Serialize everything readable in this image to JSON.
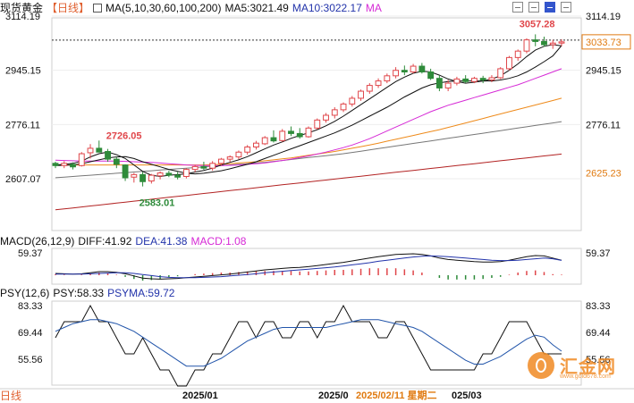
{
  "header": {
    "title": "现货黄金",
    "period": "【日线】",
    "ma_label": "MA(5,10,30,60,100,200)",
    "ma5": "MA5:3021.49",
    "ma10": "MA10:3022.17",
    "ma_more": "MA"
  },
  "macd_header": {
    "label": "MACD(26,12,9)",
    "diff": "DIFF:41.92",
    "dea": "DEA:41.38",
    "macd": "MACD:1.08"
  },
  "psy_header": {
    "label": "PSY(12,6)",
    "psy": "PSY:58.33",
    "psyma": "PSYMA:59.72"
  },
  "axis": {
    "main_left": [
      "3114.19",
      "2945.15",
      "2776.11",
      "2607.07"
    ],
    "main_right": [
      "3114.19",
      "2945.15",
      "2776.11",
      "2625.23"
    ],
    "current_price": "3033.73",
    "macd_left": "59.37",
    "macd_right": "59.37",
    "psy_left": [
      "83.33",
      "69.44",
      "55.56"
    ],
    "psy_right": [
      "83.33",
      "69.44",
      "55.56"
    ],
    "dates": [
      "2025/01",
      "2025/0",
      "2025/02/11  星期二",
      "025/03"
    ]
  },
  "timeframe_label": "日线",
  "watermark": {
    "text": "汇金网",
    "url": "www.gold678.com"
  },
  "colors": {
    "up": "#e0464a",
    "down": "#2e8b3a",
    "ma5": "#111111",
    "ma10": "#111111",
    "ma30": "#d62ad6",
    "ma60": "#ee8a1a",
    "ma100": "#777777",
    "ma200": "#b22222",
    "psy": "#111111",
    "psyma": "#2255aa"
  },
  "chart_data": {
    "type": "candlestick",
    "title": "现货黄金 日线",
    "price_range": [
      2583.01,
      3114.19
    ],
    "annotations": {
      "high": 3057.28,
      "local_high": 2726.05,
      "low": 2583.01,
      "last_price": 3033.73
    },
    "ohlc": [
      [
        2655,
        2660,
        2640,
        2648
      ],
      [
        2648,
        2662,
        2640,
        2655
      ],
      [
        2652,
        2658,
        2636,
        2644
      ],
      [
        2648,
        2690,
        2645,
        2685
      ],
      [
        2688,
        2715,
        2670,
        2702
      ],
      [
        2702,
        2726.05,
        2690,
        2690
      ],
      [
        2692,
        2700,
        2660,
        2668
      ],
      [
        2668,
        2675,
        2640,
        2652
      ],
      [
        2650,
        2652,
        2600,
        2610
      ],
      [
        2612,
        2625,
        2595,
        2620
      ],
      [
        2620,
        2628,
        2583.01,
        2598
      ],
      [
        2600,
        2622,
        2592,
        2618
      ],
      [
        2616,
        2630,
        2605,
        2625
      ],
      [
        2624,
        2632,
        2612,
        2618
      ],
      [
        2618,
        2628,
        2605,
        2612
      ],
      [
        2614,
        2640,
        2608,
        2636
      ],
      [
        2636,
        2650,
        2628,
        2645
      ],
      [
        2645,
        2660,
        2635,
        2640
      ],
      [
        2640,
        2662,
        2632,
        2655
      ],
      [
        2655,
        2672,
        2648,
        2668
      ],
      [
        2668,
        2680,
        2660,
        2675
      ],
      [
        2675,
        2695,
        2668,
        2690
      ],
      [
        2690,
        2712,
        2682,
        2706
      ],
      [
        2706,
        2725,
        2698,
        2718
      ],
      [
        2716,
        2740,
        2712,
        2735
      ],
      [
        2735,
        2758,
        2720,
        2725
      ],
      [
        2726,
        2762,
        2722,
        2755
      ],
      [
        2755,
        2770,
        2740,
        2748
      ],
      [
        2748,
        2765,
        2732,
        2738
      ],
      [
        2738,
        2770,
        2735,
        2765
      ],
      [
        2765,
        2795,
        2760,
        2790
      ],
      [
        2790,
        2812,
        2782,
        2805
      ],
      [
        2805,
        2830,
        2795,
        2822
      ],
      [
        2822,
        2845,
        2815,
        2840
      ],
      [
        2840,
        2865,
        2832,
        2858
      ],
      [
        2858,
        2885,
        2850,
        2880
      ],
      [
        2880,
        2905,
        2872,
        2898
      ],
      [
        2898,
        2920,
        2890,
        2912
      ],
      [
        2912,
        2935,
        2905,
        2928
      ],
      [
        2928,
        2955,
        2920,
        2945
      ],
      [
        2945,
        2960,
        2930,
        2940
      ],
      [
        2940,
        2965,
        2935,
        2958
      ],
      [
        2958,
        2968,
        2935,
        2940
      ],
      [
        2940,
        2950,
        2915,
        2920
      ],
      [
        2920,
        2930,
        2880,
        2890
      ],
      [
        2890,
        2915,
        2880,
        2905
      ],
      [
        2905,
        2925,
        2898,
        2918
      ],
      [
        2918,
        2930,
        2905,
        2910
      ],
      [
        2910,
        2925,
        2905,
        2920
      ],
      [
        2920,
        2928,
        2905,
        2915
      ],
      [
        2915,
        2930,
        2908,
        2922
      ],
      [
        2922,
        2955,
        2918,
        2950
      ],
      [
        2950,
        2990,
        2945,
        2985
      ],
      [
        2985,
        3010,
        2975,
        3005
      ],
      [
        3005,
        3045,
        2998,
        3040
      ],
      [
        3040,
        3057.28,
        3020,
        3035
      ],
      [
        3035,
        3050,
        3018,
        3025
      ],
      [
        3025,
        3040,
        3012,
        3030
      ],
      [
        3030,
        3042,
        3020,
        3033.73
      ]
    ],
    "ma": {
      "MA5": [
        2650,
        2652,
        2655,
        2662,
        2675,
        2685,
        2690,
        2682,
        2670,
        2650,
        2630,
        2618,
        2614,
        2618,
        2620,
        2622,
        2628,
        2633,
        2640,
        2650,
        2658,
        2666,
        2676,
        2688,
        2700,
        2712,
        2722,
        2733,
        2742,
        2750,
        2760,
        2772,
        2786,
        2802,
        2820,
        2838,
        2856,
        2874,
        2892,
        2910,
        2924,
        2936,
        2942,
        2940,
        2930,
        2918,
        2910,
        2905,
        2908,
        2912,
        2918,
        2928,
        2945,
        2965,
        2988,
        3008,
        3020,
        3025,
        3021.49
      ],
      "MA10": [
        2648,
        2649,
        2650,
        2654,
        2660,
        2666,
        2672,
        2675,
        2676,
        2670,
        2660,
        2652,
        2644,
        2636,
        2630,
        2624,
        2622,
        2624,
        2628,
        2632,
        2638,
        2645,
        2652,
        2660,
        2670,
        2680,
        2690,
        2700,
        2710,
        2720,
        2730,
        2740,
        2750,
        2762,
        2774,
        2788,
        2802,
        2816,
        2830,
        2846,
        2862,
        2876,
        2890,
        2900,
        2906,
        2910,
        2912,
        2912,
        2912,
        2912,
        2912,
        2915,
        2920,
        2928,
        2940,
        2955,
        2972,
        2990,
        3022.17
      ],
      "MA30": [
        2665,
        2664,
        2663,
        2662,
        2662,
        2662,
        2662,
        2662,
        2661,
        2660,
        2659,
        2658,
        2656,
        2654,
        2652,
        2650,
        2649,
        2648,
        2648,
        2648,
        2649,
        2650,
        2652,
        2654,
        2656,
        2660,
        2664,
        2668,
        2673,
        2678,
        2684,
        2690,
        2697,
        2704,
        2712,
        2722,
        2732,
        2744,
        2756,
        2768,
        2780,
        2792,
        2804,
        2816,
        2826,
        2836,
        2844,
        2852,
        2860,
        2868,
        2876,
        2884,
        2892,
        2900,
        2910,
        2920,
        2930,
        2940,
        2950
      ],
      "MA60": [
        2650,
        2650,
        2650,
        2650,
        2650,
        2650,
        2650,
        2650,
        2650,
        2650,
        2650,
        2650,
        2650,
        2650,
        2650,
        2650,
        2650,
        2650,
        2651,
        2652,
        2654,
        2656,
        2658,
        2660,
        2663,
        2666,
        2669,
        2672,
        2676,
        2680,
        2684,
        2688,
        2692,
        2697,
        2702,
        2707,
        2712,
        2718,
        2724,
        2730,
        2736,
        2742,
        2748,
        2754,
        2760,
        2767,
        2774,
        2781,
        2788,
        2795,
        2802,
        2809,
        2816,
        2823,
        2830,
        2837,
        2844,
        2851,
        2858
      ],
      "MA100": [
        2610,
        2612,
        2614,
        2616,
        2618,
        2620,
        2622,
        2624,
        2626,
        2628,
        2630,
        2632,
        2634,
        2636,
        2638,
        2640,
        2642,
        2644,
        2646,
        2648,
        2650,
        2652,
        2654,
        2656,
        2658,
        2661,
        2664,
        2667,
        2670,
        2673,
        2676,
        2679,
        2682,
        2685,
        2689,
        2693,
        2697,
        2701,
        2705,
        2709,
        2713,
        2717,
        2721,
        2725,
        2729,
        2733,
        2737,
        2741,
        2745,
        2749,
        2753,
        2757,
        2761,
        2765,
        2769,
        2773,
        2777,
        2781,
        2785
      ],
      "MA200": [
        2510,
        2513,
        2516,
        2519,
        2522,
        2525,
        2528,
        2531,
        2534,
        2537,
        2540,
        2543,
        2546,
        2549,
        2552,
        2555,
        2558,
        2561,
        2564,
        2567,
        2570,
        2573,
        2576,
        2579,
        2582,
        2585,
        2588,
        2591,
        2594,
        2597,
        2600,
        2603,
        2606,
        2609,
        2612,
        2615,
        2618,
        2621,
        2624,
        2627,
        2630,
        2633,
        2636,
        2639,
        2642,
        2645,
        2648,
        2651,
        2654,
        2657,
        2660,
        2663,
        2666,
        2669,
        2672,
        2675,
        2678,
        2681,
        2684
      ]
    },
    "macd": {
      "dif": [
        5,
        4,
        3,
        4,
        7,
        10,
        10,
        8,
        4,
        -2,
        -8,
        -10,
        -11,
        -10,
        -9,
        -7,
        -5,
        -3,
        -1,
        1,
        3,
        6,
        9,
        12,
        15,
        17,
        19,
        21,
        22,
        24,
        27,
        30,
        33,
        36,
        40,
        44,
        48,
        52,
        55,
        58,
        59,
        60,
        58,
        54,
        48,
        44,
        42,
        40,
        38,
        37,
        37,
        38,
        42,
        47,
        52,
        55,
        54,
        48,
        41.92
      ],
      "dea": [
        3,
        3,
        3,
        3,
        4,
        5,
        6,
        7,
        7,
        5,
        2,
        -1,
        -4,
        -6,
        -7,
        -7,
        -7,
        -6,
        -5,
        -4,
        -2,
        0,
        2,
        4,
        7,
        9,
        11,
        13,
        15,
        17,
        19,
        21,
        23,
        26,
        29,
        32,
        35,
        39,
        42,
        45,
        48,
        51,
        53,
        54,
        53,
        52,
        50,
        48,
        46,
        44,
        42,
        41,
        41,
        42,
        44,
        46,
        48,
        46,
        41.38
      ],
      "macd": [
        2,
        1,
        0,
        1,
        3,
        5,
        4,
        1,
        -3,
        -7,
        -10,
        -9,
        -7,
        -4,
        -2,
        0,
        2,
        3,
        4,
        5,
        5,
        6,
        7,
        8,
        8,
        8,
        8,
        8,
        7,
        7,
        8,
        9,
        10,
        10,
        11,
        12,
        13,
        13,
        13,
        13,
        11,
        9,
        5,
        0,
        -5,
        -8,
        -8,
        -8,
        -8,
        -7,
        -5,
        -3,
        1,
        5,
        8,
        9,
        6,
        2,
        1.08
      ]
    },
    "psy": {
      "psy": [
        66.67,
        75,
        75,
        75,
        83.33,
        75,
        75,
        66.67,
        58.33,
        58.33,
        66.67,
        58.33,
        50,
        50,
        41.67,
        41.67,
        50,
        50,
        58.33,
        58.33,
        66.67,
        75,
        75,
        66.67,
        75,
        75,
        66.67,
        66.67,
        75,
        75,
        66.67,
        75,
        75,
        83.33,
        75,
        75,
        75,
        66.67,
        66.67,
        75,
        75,
        66.67,
        58.33,
        50,
        50,
        50,
        50,
        50,
        50,
        58.33,
        58.33,
        66.67,
        75,
        75,
        75,
        66.67,
        58.33,
        58.33,
        58.33
      ],
      "psyma": [
        70,
        72,
        74,
        75,
        76,
        76,
        75,
        74,
        72,
        70,
        67,
        64,
        61,
        58,
        55,
        52,
        52,
        52,
        54,
        56,
        59,
        62,
        65,
        67,
        69,
        71,
        72,
        72,
        72,
        72,
        72,
        72,
        73,
        74,
        75,
        76,
        76,
        76,
        75,
        74,
        73,
        72,
        70,
        67,
        64,
        61,
        58,
        55,
        53,
        53,
        55,
        57,
        60,
        63,
        66,
        68,
        67,
        63,
        59.72
      ]
    }
  }
}
